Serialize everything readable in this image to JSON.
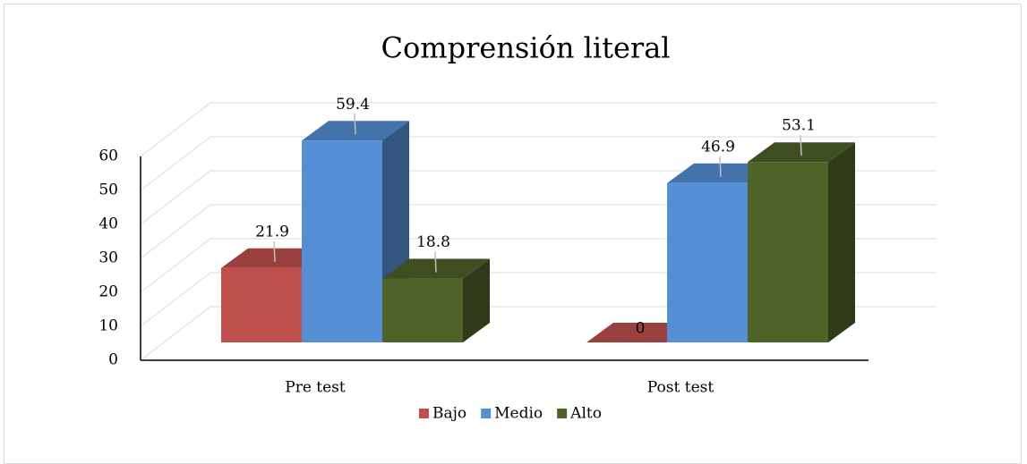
{
  "chart_data": {
    "type": "bar3d",
    "title": "Comprensión literal",
    "categories": [
      "Pre test",
      "Post test"
    ],
    "series": [
      {
        "name": "Bajo",
        "color": "#c0504d",
        "values": [
          21.9,
          0
        ]
      },
      {
        "name": "Medio",
        "color": "#558ed5",
        "values": [
          59.4,
          46.9
        ]
      },
      {
        "name": "Alto",
        "color": "#4f6228",
        "values": [
          18.8,
          53.1
        ]
      }
    ],
    "ylim": [
      0,
      60
    ],
    "yticks": [
      0,
      10,
      20,
      30,
      40,
      50,
      60
    ],
    "grid": true,
    "legend": "bottom"
  }
}
